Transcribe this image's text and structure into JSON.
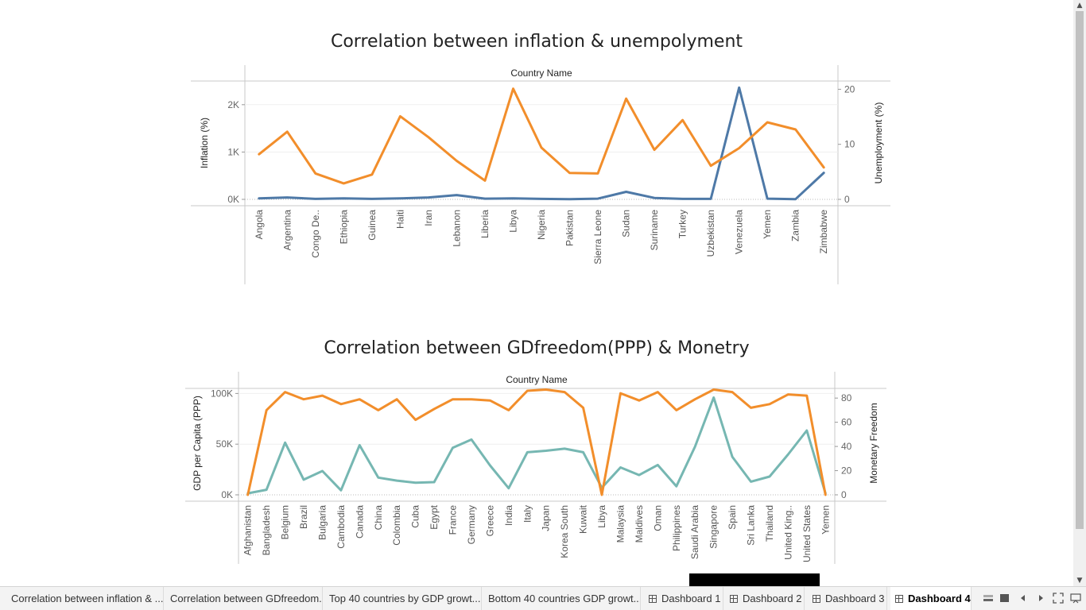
{
  "charts": {
    "top": {
      "title": "Correlation between inflation & unempolyment",
      "header": "Country Name",
      "left_axis_title": "Inflation (%)",
      "right_axis_title": "Unemployment (%)",
      "left_ticks": [
        "2K",
        "1K",
        "0K"
      ],
      "right_ticks": [
        "20",
        "10",
        "0"
      ]
    },
    "bottom": {
      "title": "Correlation between GDfreedom(PPP) & Monetry",
      "header": "Country Name",
      "left_axis_title": "GDP per Capita (PPP)",
      "right_axis_title": "Monetary Freedom",
      "left_ticks": [
        "100K",
        "50K",
        "0K"
      ],
      "right_ticks": [
        "80",
        "60",
        "40",
        "20",
        "0"
      ]
    }
  },
  "chart_data": [
    {
      "type": "line",
      "title": "Correlation between inflation & unempolyment",
      "xlabel": "Country Name",
      "categories": [
        "Angola",
        "Argentina",
        "Congo De..",
        "Ethiopia",
        "Guinea",
        "Haiti",
        "Iran",
        "Lebanon",
        "Liberia",
        "Libya",
        "Nigeria",
        "Pakistan",
        "Sierra Leone",
        "Sudan",
        "Suriname",
        "Turkey",
        "Uzbekistan",
        "Venezuela",
        "Yemen",
        "Zambia",
        "Zimbabwe"
      ],
      "left_axis": {
        "label": "Inflation (%)",
        "ylim": [
          0,
          2500
        ]
      },
      "right_axis": {
        "label": "Unemployment (%)",
        "ylim": [
          0,
          21.5
        ]
      },
      "series": [
        {
          "axis": "left",
          "color": "#4e79a7",
          "values": [
            20,
            40,
            10,
            20,
            10,
            20,
            40,
            90,
            15,
            20,
            10,
            5,
            15,
            160,
            30,
            10,
            10,
            2360,
            15,
            5,
            560
          ]
        },
        {
          "axis": "right",
          "color": "#f28e2b",
          "values": [
            8.2,
            12.3,
            4.7,
            2.9,
            4.5,
            15.1,
            11.3,
            7.0,
            3.4,
            20.1,
            9.4,
            4.8,
            4.7,
            18.3,
            9.0,
            14.4,
            6.1,
            9.3,
            14.0,
            12.7,
            5.8
          ]
        }
      ]
    },
    {
      "type": "line",
      "title": "Correlation between GDfreedom(PPP) & Monetry",
      "xlabel": "Country Name",
      "categories": [
        "Afghanistan",
        "Bangladesh",
        "Belgium",
        "Brazil",
        "Bulgaria",
        "Cambodia",
        "Canada",
        "China",
        "Colombia",
        "Cuba",
        "Egypt",
        "France",
        "Germany",
        "Greece",
        "India",
        "Italy",
        "Japan",
        "Korea South",
        "Kuwait",
        "Libya",
        "Malaysia",
        "Maldives",
        "Oman",
        "Philippines",
        "Saudi Arabia",
        "Singapore",
        "Spain",
        "Sri Lanka",
        "Thailand",
        "United King..",
        "United States",
        "Yemen"
      ],
      "left_axis": {
        "label": "GDP per Capita (PPP)",
        "ylim": [
          0,
          105000
        ]
      },
      "right_axis": {
        "label": "Monetary Freedom",
        "ylim": [
          0,
          88
        ]
      },
      "series": [
        {
          "axis": "left",
          "color": "#76b7b2",
          "values": [
            1500,
            5000,
            51500,
            15000,
            23500,
            4500,
            49000,
            17000,
            14000,
            12000,
            12500,
            46500,
            54500,
            29000,
            6500,
            42000,
            43500,
            45500,
            42000,
            7000,
            27000,
            19500,
            29500,
            8500,
            47500,
            96000,
            37500,
            13000,
            18000,
            40000,
            63500,
            1500
          ]
        },
        {
          "axis": "right",
          "color": "#f28e2b",
          "values": [
            0,
            70,
            85,
            79,
            82,
            75,
            79,
            70,
            79,
            62,
            71,
            79,
            79,
            78,
            70,
            86,
            87,
            85,
            72,
            0,
            84,
            78,
            85,
            70,
            79,
            87,
            85,
            72,
            75,
            83,
            82,
            0
          ]
        }
      ]
    }
  ],
  "tabs": [
    {
      "label": "Correlation between inflation & ...",
      "icon": "",
      "active": false
    },
    {
      "label": "Correlation between GDfreedom...",
      "icon": "",
      "active": false
    },
    {
      "label": "Top 40 countries by GDP growt...",
      "icon": "",
      "active": false
    },
    {
      "label": "Bottom 40 countries GDP growt...",
      "icon": "",
      "active": false
    },
    {
      "label": "Dashboard 1",
      "icon": "dashboard-grid-icon",
      "active": false
    },
    {
      "label": "Dashboard 2",
      "icon": "dashboard-grid-icon",
      "active": false
    },
    {
      "label": "Dashboard 3",
      "icon": "dashboard-grid-icon",
      "active": false
    },
    {
      "label": "Dashboard 4",
      "icon": "dashboard-grid-icon",
      "active": true
    }
  ],
  "tab_tools": [
    "show-sheets-icon",
    "filmstrip-icon",
    "prev-sheet-icon",
    "next-sheet-icon",
    "fullscreen-icon",
    "presentation-icon"
  ]
}
